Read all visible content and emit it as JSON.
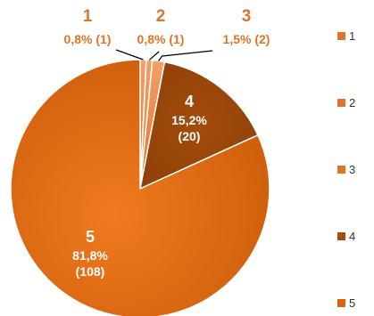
{
  "chart_data": {
    "type": "pie",
    "categories": [
      "1",
      "2",
      "3",
      "4",
      "5"
    ],
    "values": [
      1,
      1,
      2,
      20,
      108
    ],
    "percent_labels": [
      "0,8% (1)",
      "0,8% (1)",
      "1,5% (2)",
      "15,2%",
      "81,8%"
    ],
    "count_labels": [
      "",
      "",
      "",
      "(20)",
      "(108)"
    ],
    "title": "",
    "legend": {
      "position": "right",
      "entries": [
        "1",
        "2",
        "3",
        "4",
        "5"
      ]
    },
    "colors": [
      "#e07428",
      "#e07428",
      "#e07428",
      "#b45308",
      "#d9660f"
    ],
    "label_colors": {
      "outside": "#e07428",
      "inside": "#ffffff",
      "leader": "#000000"
    }
  }
}
